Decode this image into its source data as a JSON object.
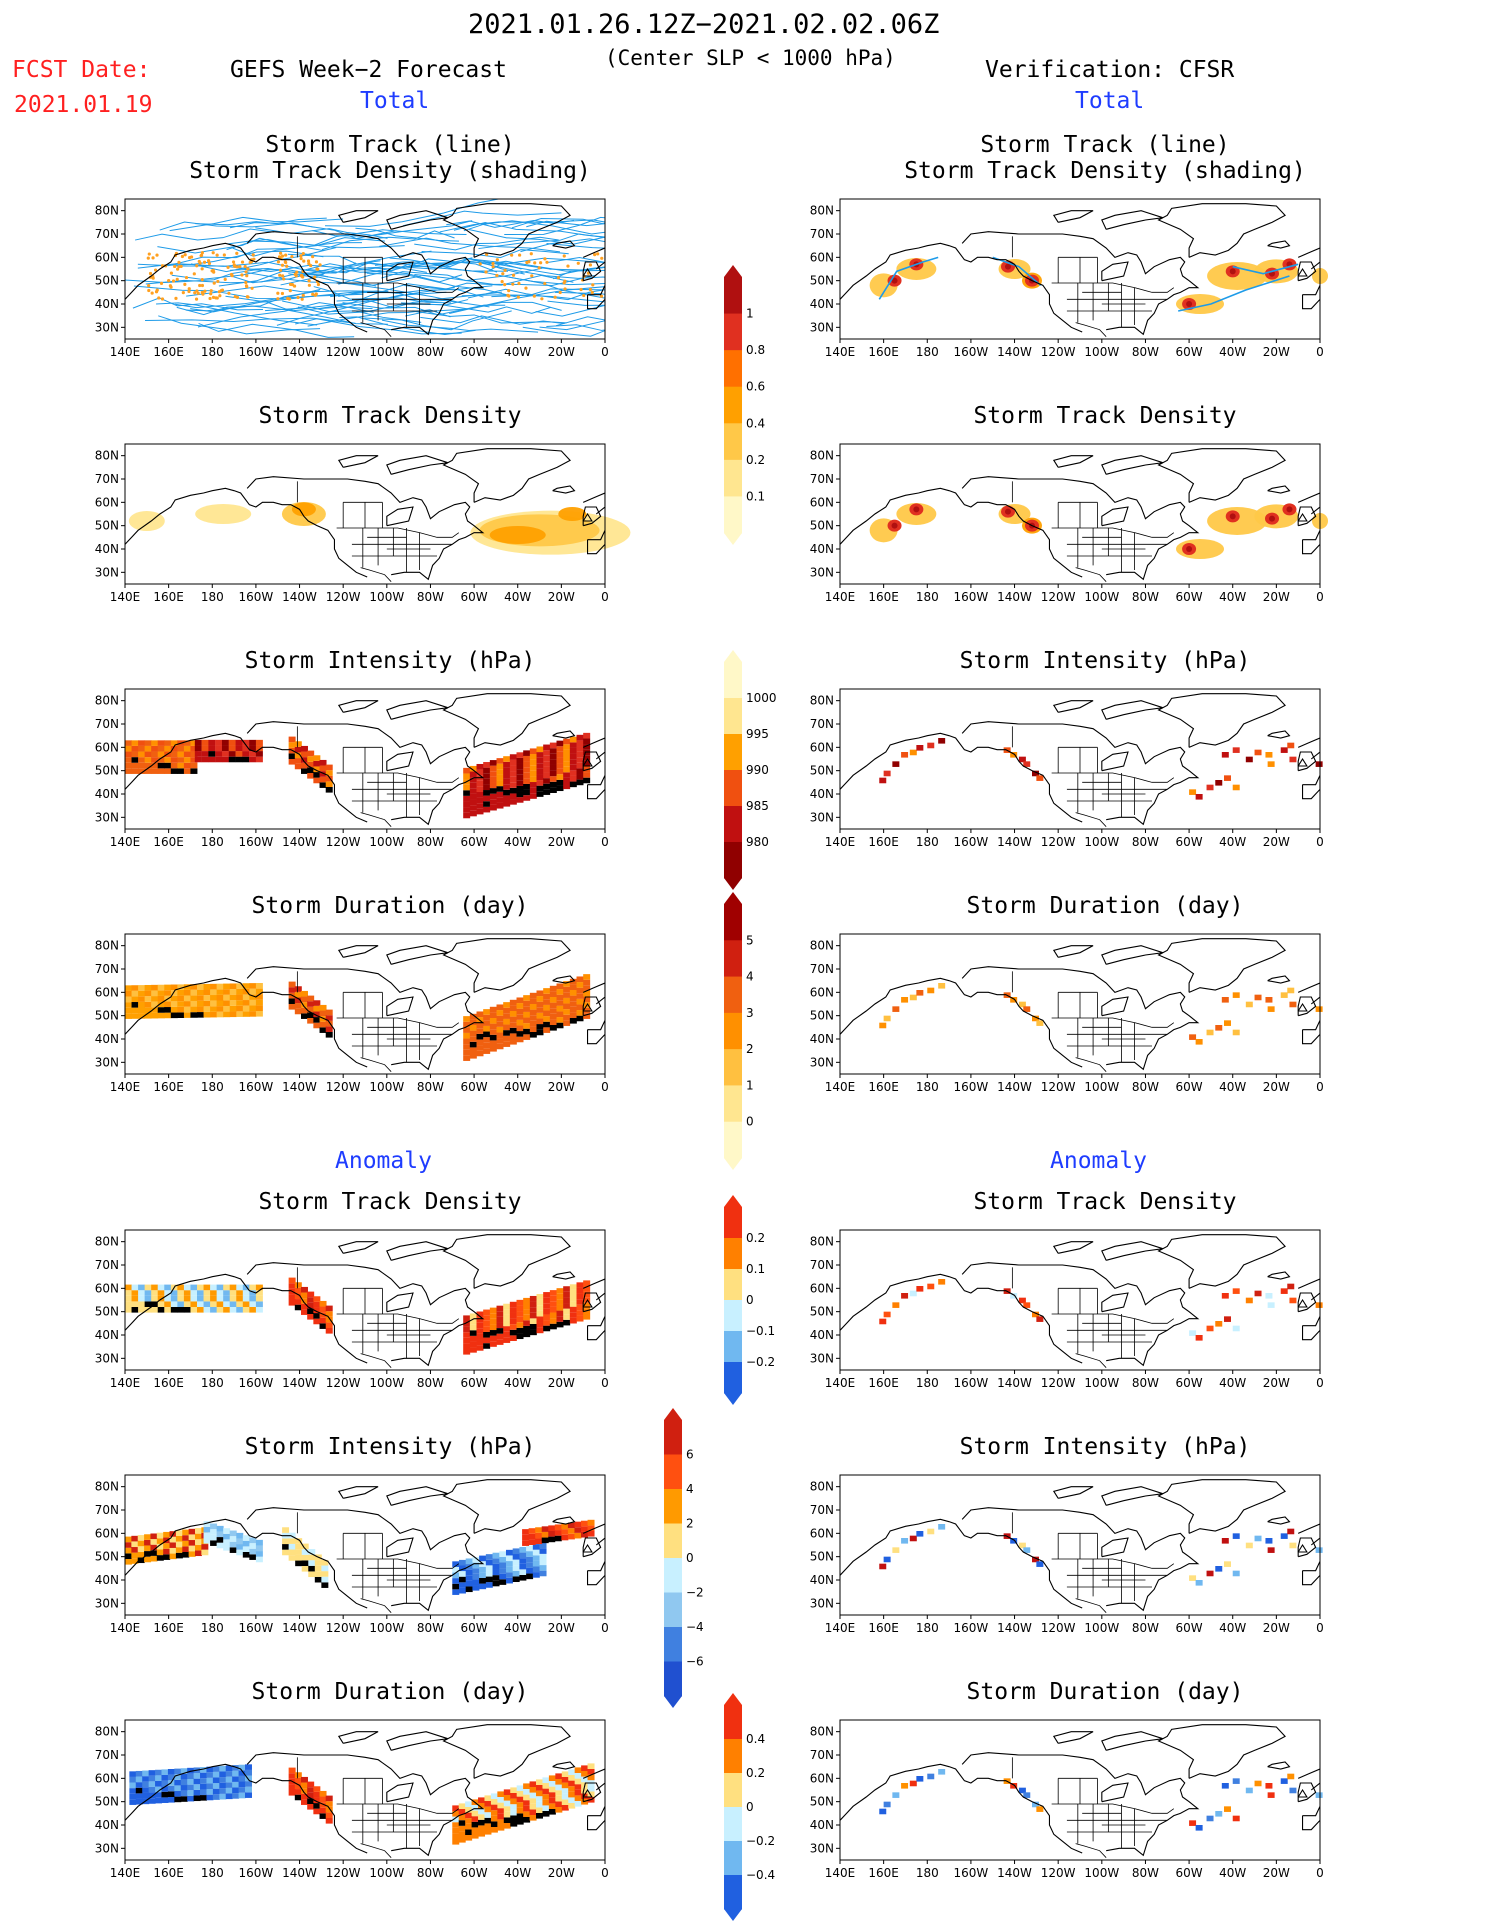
{
  "header": {
    "date_range": "2021.01.26.12Z−2021.02.02.06Z",
    "subtitle": "(Center SLP < 1000 hPa)",
    "fcst_label": "FCST Date:",
    "fcst_date": "2021.01.19",
    "left_model": "GEFS Week−2 Forecast",
    "right_model": "Verification: CFSR"
  },
  "sections": {
    "total": "Total",
    "anomaly": "Anomaly"
  },
  "panel_titles": {
    "track_line": "Storm Track (line)",
    "track_shading": "Storm Track Density (shading)",
    "density": "Storm Track Density",
    "intensity": "Storm Intensity (hPa)",
    "duration": "Storm Duration (day)"
  },
  "axes": {
    "lat_labels": [
      "80N",
      "70N",
      "60N",
      "50N",
      "40N",
      "30N"
    ],
    "lon_labels": [
      "140E",
      "160E",
      "180",
      "160W",
      "140W",
      "120W",
      "100W",
      "80W",
      "60W",
      "40W",
      "20W",
      "0"
    ]
  },
  "colorbars": [
    {
      "name": "total-density",
      "labels": [
        "1",
        "0.8",
        "0.6",
        "0.4",
        "0.2",
        "0.1"
      ],
      "colors": [
        "#b01010",
        "#e03020",
        "#ff7000",
        "#ffa000",
        "#ffc848",
        "#ffe690",
        "#fff8c8"
      ]
    },
    {
      "name": "total-intensity",
      "labels": [
        "1000",
        "995",
        "990",
        "985",
        "980"
      ],
      "colors": [
        "#fff8c8",
        "#ffe690",
        "#ffa000",
        "#f05010",
        "#c01010",
        "#900000"
      ]
    },
    {
      "name": "total-duration",
      "labels": [
        "5",
        "4",
        "3",
        "2",
        "1",
        "0"
      ],
      "colors": [
        "#a00000",
        "#d02010",
        "#f06010",
        "#ff9000",
        "#ffc040",
        "#ffe690",
        "#fff8c8"
      ]
    },
    {
      "name": "anomaly-density",
      "labels": [
        "0.2",
        "0.1",
        "0",
        "−0.1",
        "−0.2"
      ],
      "colors": [
        "#f03010",
        "#ff8000",
        "#ffe080",
        "#c8f0ff",
        "#70b8f0",
        "#2060e0"
      ]
    },
    {
      "name": "anomaly-intensity",
      "labels": [
        "6",
        "4",
        "2",
        "0",
        "−2",
        "−4",
        "−6"
      ],
      "colors": [
        "#d02010",
        "#ff5010",
        "#ff9a00",
        "#ffe080",
        "#c8f0ff",
        "#90c8f0",
        "#4080e0",
        "#2050d0"
      ]
    },
    {
      "name": "anomaly-duration",
      "labels": [
        "0.4",
        "0.2",
        "0",
        "−0.2",
        "−0.4"
      ],
      "colors": [
        "#f03010",
        "#ff8000",
        "#ffe080",
        "#c8f0ff",
        "#70b8f0",
        "#2060e0"
      ]
    }
  ],
  "colors": {
    "track_line": "#1e9be8",
    "track_dot": "#ffa020",
    "coast": "#000000"
  }
}
